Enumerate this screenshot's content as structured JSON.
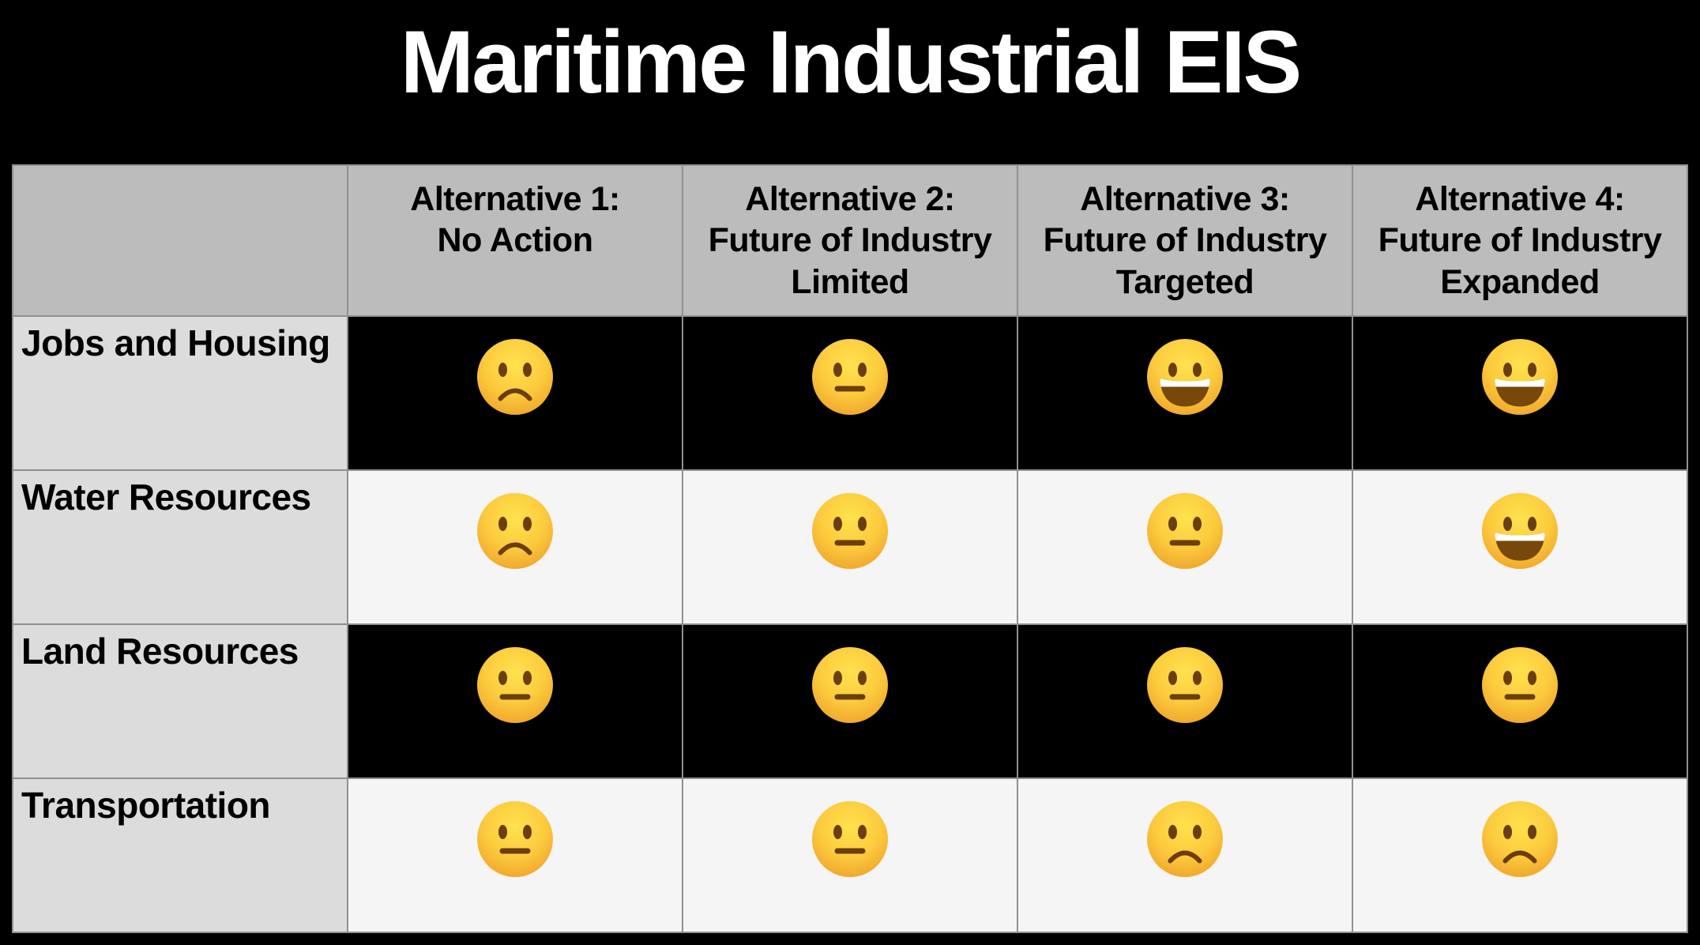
{
  "title": "Maritime Industrial EIS",
  "table": {
    "corner_label": "",
    "columns": [
      {
        "title": "Alternative 1:",
        "subtitle": "No Action"
      },
      {
        "title": "Alternative 2:",
        "subtitle": "Future of Industry\nLimited"
      },
      {
        "title": "Alternative 3:",
        "subtitle": "Future of Industry\nTargeted"
      },
      {
        "title": "Alternative 4:",
        "subtitle": "Future of Industry\nExpanded"
      }
    ],
    "rows": [
      {
        "label": "Jobs and Housing",
        "ratings": [
          "sad",
          "neutral",
          "happy",
          "happy"
        ]
      },
      {
        "label": "Water Resources",
        "ratings": [
          "sad",
          "neutral",
          "neutral",
          "happy"
        ]
      },
      {
        "label": "Land Resources",
        "ratings": [
          "neutral",
          "neutral",
          "neutral",
          "neutral"
        ]
      },
      {
        "label": "Transportation",
        "ratings": [
          "neutral",
          "neutral",
          "sad",
          "sad"
        ]
      }
    ],
    "rating_glyphs": {
      "sad": "🙁",
      "neutral": "😐",
      "happy": "😀"
    }
  },
  "colors": {
    "page_background": "#000000",
    "title_text": "#ffffff",
    "header_bg": "#bcbcbc",
    "row_label_bg": "#dcdcdc",
    "row_dark_bg": "#000000",
    "row_light_bg": "#f5f5f5",
    "grid_border": "#909090",
    "face_top": "#FFE24D",
    "face_mid": "#FCCB3E",
    "face_bottom": "#EFA32B",
    "face_features": "#6B3E10",
    "teeth": "#FFFFFF"
  }
}
